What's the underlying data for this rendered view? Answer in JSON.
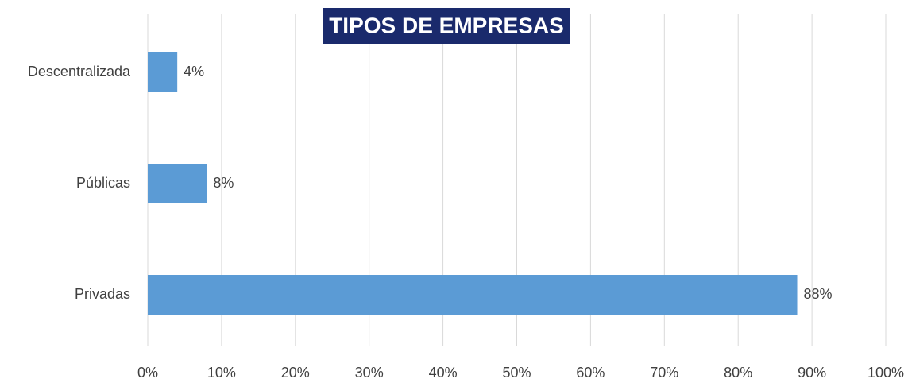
{
  "chart_data": {
    "type": "hbar",
    "title": "TIPOS DE EMPRESAS",
    "categories": [
      "Descentralizada",
      "Públicas",
      "Privadas"
    ],
    "values": [
      4,
      8,
      88
    ],
    "value_labels": [
      "4%",
      "8%",
      "88%"
    ],
    "color": "#5b9bd5",
    "title_background": "#1a2a6c",
    "xlim": [
      0,
      100
    ],
    "xticks": [
      {
        "value": 0,
        "label": "0%"
      },
      {
        "value": 10,
        "label": "10%"
      },
      {
        "value": 20,
        "label": "20%"
      },
      {
        "value": 30,
        "label": "30%"
      },
      {
        "value": 40,
        "label": "40%"
      },
      {
        "value": 50,
        "label": "50%"
      },
      {
        "value": 60,
        "label": "60%"
      },
      {
        "value": 70,
        "label": "70%"
      },
      {
        "value": 80,
        "label": "80%"
      },
      {
        "value": 90,
        "label": "90%"
      },
      {
        "value": 100,
        "label": "100%"
      }
    ],
    "grid": true
  }
}
